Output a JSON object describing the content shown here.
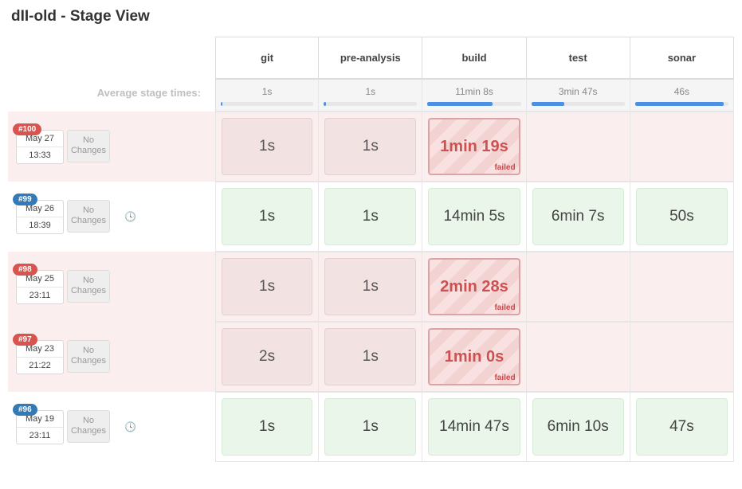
{
  "title": "dII-old - Stage View",
  "avg_label": "Average stage times:",
  "no_changes_label": "No\nChanges",
  "failed_label": "failed",
  "stages": [
    {
      "name": "git",
      "avg": "1s",
      "bar_pct": 2
    },
    {
      "name": "pre-analysis",
      "avg": "1s",
      "bar_pct": 2
    },
    {
      "name": "build",
      "avg": "11min 8s",
      "bar_pct": 70
    },
    {
      "name": "test",
      "avg": "3min 47s",
      "bar_pct": 35
    },
    {
      "name": "sonar",
      "avg": "46s",
      "bar_pct": 95
    }
  ],
  "builds": [
    {
      "num": "#100",
      "badge_color": "red",
      "date": "May 27",
      "time": "13:33",
      "changes": "none",
      "row_status": "failed",
      "clock": false,
      "cells": [
        {
          "text": "1s",
          "status": "failed-muted"
        },
        {
          "text": "1s",
          "status": "failed-muted"
        },
        {
          "text": "1min 19s",
          "status": "failed"
        },
        {
          "text": "",
          "status": "empty"
        },
        {
          "text": "",
          "status": "empty"
        }
      ]
    },
    {
      "num": "#99",
      "badge_color": "blue",
      "date": "May 26",
      "time": "18:39",
      "changes": "none",
      "row_status": "success",
      "clock": true,
      "cells": [
        {
          "text": "1s",
          "status": "success"
        },
        {
          "text": "1s",
          "status": "success"
        },
        {
          "text": "14min 5s",
          "status": "success"
        },
        {
          "text": "6min 7s",
          "status": "success"
        },
        {
          "text": "50s",
          "status": "success"
        }
      ]
    },
    {
      "num": "#98",
      "badge_color": "red",
      "date": "May 25",
      "time": "23:11",
      "changes": "none",
      "row_status": "failed",
      "clock": false,
      "cells": [
        {
          "text": "1s",
          "status": "failed-muted"
        },
        {
          "text": "1s",
          "status": "failed-muted"
        },
        {
          "text": "2min 28s",
          "status": "failed"
        },
        {
          "text": "",
          "status": "empty"
        },
        {
          "text": "",
          "status": "empty"
        }
      ]
    },
    {
      "num": "#97",
      "badge_color": "red",
      "date": "May 23",
      "time": "21:22",
      "changes": "none",
      "row_status": "failed",
      "clock": false,
      "cells": [
        {
          "text": "2s",
          "status": "failed-muted"
        },
        {
          "text": "1s",
          "status": "failed-muted"
        },
        {
          "text": "1min 0s",
          "status": "failed"
        },
        {
          "text": "",
          "status": "empty"
        },
        {
          "text": "",
          "status": "empty"
        }
      ]
    },
    {
      "num": "#96",
      "badge_color": "blue",
      "date": "May 19",
      "time": "23:11",
      "changes": "none",
      "row_status": "success",
      "clock": true,
      "cells": [
        {
          "text": "1s",
          "status": "success"
        },
        {
          "text": "1s",
          "status": "success"
        },
        {
          "text": "14min 47s",
          "status": "success"
        },
        {
          "text": "6min 10s",
          "status": "success"
        },
        {
          "text": "47s",
          "status": "success"
        }
      ]
    }
  ]
}
